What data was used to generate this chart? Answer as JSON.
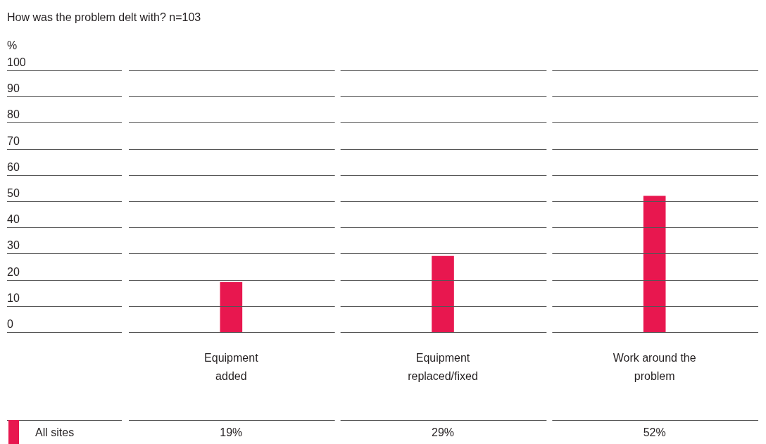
{
  "chart_data": {
    "type": "bar",
    "title": "How was the problem delt with? n=103",
    "ylabel": "%",
    "categories": [
      "Equipment added",
      "Equipment replaced/fixed",
      "Work around the problem"
    ],
    "series": [
      {
        "name": "All sites",
        "color": "#e8174f",
        "values": [
          19,
          29,
          52
        ],
        "value_labels": [
          "19%",
          "29%",
          "52%"
        ]
      }
    ],
    "ylim": [
      0,
      100
    ],
    "yticks": [
      0,
      10,
      20,
      30,
      40,
      50,
      60,
      70,
      80,
      90,
      100
    ],
    "grid": "y",
    "legend": "bottom left"
  }
}
